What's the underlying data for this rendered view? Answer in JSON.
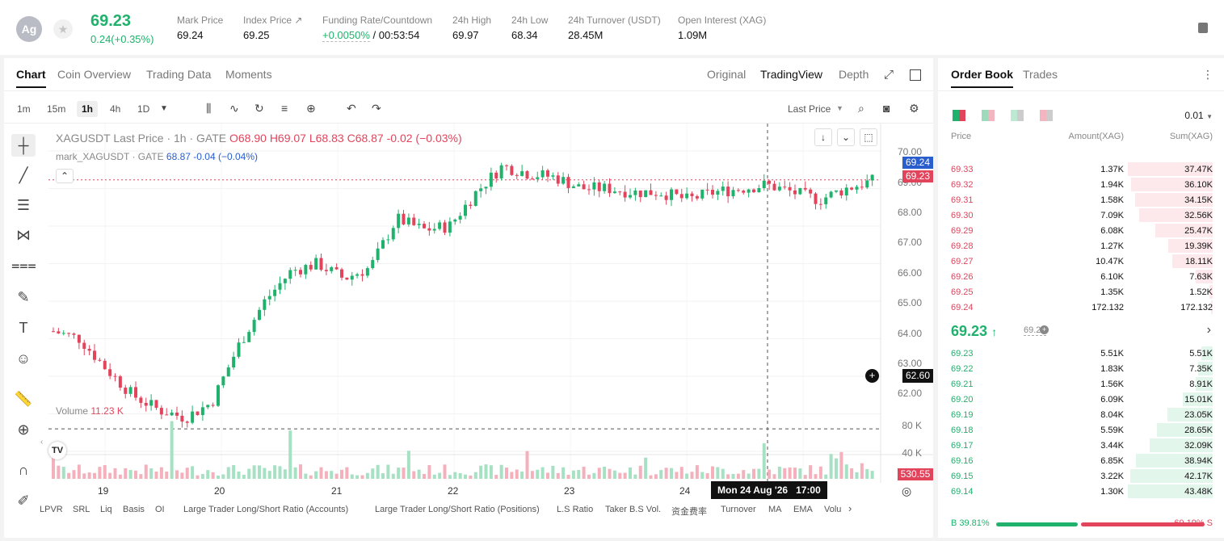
{
  "header": {
    "symbol_avatar": "Ag",
    "last_price": "69.23",
    "change": "0.24(+0.35%)",
    "stats": [
      {
        "label": "Mark Price",
        "value": "69.24"
      },
      {
        "label": "Index Price ↗",
        "value": "69.25"
      },
      {
        "label": "Funding Rate/Countdown",
        "value_green": "+0.0050%",
        "value": "/ 00:53:54"
      },
      {
        "label": "24h High",
        "value": "69.97"
      },
      {
        "label": "24h Low",
        "value": "68.34"
      },
      {
        "label": "24h Turnover (USDT)",
        "value": "28.45M"
      },
      {
        "label": "Open Interest (XAG)",
        "value": "1.09M"
      }
    ]
  },
  "chart_panel": {
    "tabs": [
      "Chart",
      "Coin Overview",
      "Trading Data",
      "Moments"
    ],
    "view_tabs": [
      "Original",
      "TradingView",
      "Depth"
    ],
    "intervals": [
      "1m",
      "15m",
      "1h",
      "4h",
      "1D"
    ],
    "active_interval": "1h",
    "price_type": "Last Price",
    "legend1": {
      "name": "XAGUSDT Last Price · 1h · GATE",
      "o": "O68.90",
      "h": "H69.07",
      "l": "L68.83",
      "c": "C68.87",
      "chg": "-0.02 (−0.03%)"
    },
    "legend2": {
      "name": "mark_XAGUSDT · GATE",
      "v1": "68.87",
      "v2": "-0.04 (−0.04%)"
    },
    "volume_label": "Volume",
    "volume_value": "11.23 K",
    "y_labels": [
      "70.00",
      "69.00",
      "68.00",
      "67.00",
      "66.00",
      "65.00",
      "64.00",
      "63.00",
      "62.00"
    ],
    "vol_labels": [
      "80 K",
      "40 K"
    ],
    "price_tags": {
      "mark": "69.24",
      "last": "69.23",
      "cursor": "62.60",
      "volume": "530.55"
    },
    "x_labels": [
      "19",
      "20",
      "21",
      "22",
      "23",
      "24"
    ],
    "crosshair_time": "Mon 24 Aug '26   17:00",
    "indicators": [
      "LPVR",
      "SRL",
      "Liq",
      "Basis",
      "OI",
      "Large Trader Long/Short Ratio (Accounts)",
      "Large Trader Long/Short Ratio (Positions)",
      "L.S Ratio",
      "Taker B.S Vol.",
      "资金费率",
      "Turnover",
      "MA",
      "EMA",
      "Volu"
    ]
  },
  "chart_data": {
    "type": "candlestick",
    "x_axis_day_labels": [
      "19",
      "20",
      "21",
      "22",
      "23",
      "24"
    ],
    "ylim": [
      62.0,
      70.0
    ],
    "approx_close_path": [
      65.2,
      65.0,
      64.2,
      63.5,
      63.1,
      62.9,
      63.3,
      64.8,
      66.0,
      66.8,
      67.0,
      66.6,
      66.9,
      68.2,
      67.9,
      68.0,
      68.9,
      69.6,
      69.4,
      69.3,
      69.0,
      69.0,
      68.9,
      68.9,
      68.7,
      68.9,
      69.0,
      69.1,
      68.9,
      68.7,
      69.0,
      69.2
    ]
  },
  "orderbook": {
    "tabs": [
      "Order Book",
      "Trades"
    ],
    "tick": "0.01",
    "headers": [
      "Price",
      "Amount(XAG)",
      "Sum(XAG)"
    ],
    "asks": [
      {
        "p": "69.33",
        "a": "1.37K",
        "s": "37.47K",
        "f": 1.0
      },
      {
        "p": "69.32",
        "a": "1.94K",
        "s": "36.10K",
        "f": 0.96
      },
      {
        "p": "69.31",
        "a": "1.58K",
        "s": "34.15K",
        "f": 0.91
      },
      {
        "p": "69.30",
        "a": "7.09K",
        "s": "32.56K",
        "f": 0.87
      },
      {
        "p": "69.29",
        "a": "6.08K",
        "s": "25.47K",
        "f": 0.68
      },
      {
        "p": "69.28",
        "a": "1.27K",
        "s": "19.39K",
        "f": 0.52
      },
      {
        "p": "69.27",
        "a": "10.47K",
        "s": "18.11K",
        "f": 0.48
      },
      {
        "p": "69.26",
        "a": "6.10K",
        "s": "7.63K",
        "f": 0.2
      },
      {
        "p": "69.25",
        "a": "1.35K",
        "s": "1.52K",
        "f": 0.04
      },
      {
        "p": "69.24",
        "a": "172.132",
        "s": "172.132",
        "f": 0.005
      }
    ],
    "mid_price": "69.23",
    "mid_arrow": "↑",
    "mid_mark": "69.24",
    "bids": [
      {
        "p": "69.23",
        "a": "5.51K",
        "s": "5.51K",
        "f": 0.13
      },
      {
        "p": "69.22",
        "a": "1.83K",
        "s": "7.35K",
        "f": 0.17
      },
      {
        "p": "69.21",
        "a": "1.56K",
        "s": "8.91K",
        "f": 0.2
      },
      {
        "p": "69.20",
        "a": "6.09K",
        "s": "15.01K",
        "f": 0.35
      },
      {
        "p": "69.19",
        "a": "8.04K",
        "s": "23.05K",
        "f": 0.53
      },
      {
        "p": "69.18",
        "a": "5.59K",
        "s": "28.65K",
        "f": 0.66
      },
      {
        "p": "69.17",
        "a": "3.44K",
        "s": "32.09K",
        "f": 0.74
      },
      {
        "p": "69.16",
        "a": "6.85K",
        "s": "38.94K",
        "f": 0.9
      },
      {
        "p": "69.15",
        "a": "3.22K",
        "s": "42.17K",
        "f": 0.97
      },
      {
        "p": "69.14",
        "a": "1.30K",
        "s": "43.48K",
        "f": 1.0
      }
    ],
    "buy_ratio": "B 39.81%",
    "sell_ratio": "60.19% S",
    "buy_pct": 39.81
  },
  "colors": {
    "up": "#20b26c",
    "down": "#e2445c",
    "accent": "#2a5ecd"
  }
}
